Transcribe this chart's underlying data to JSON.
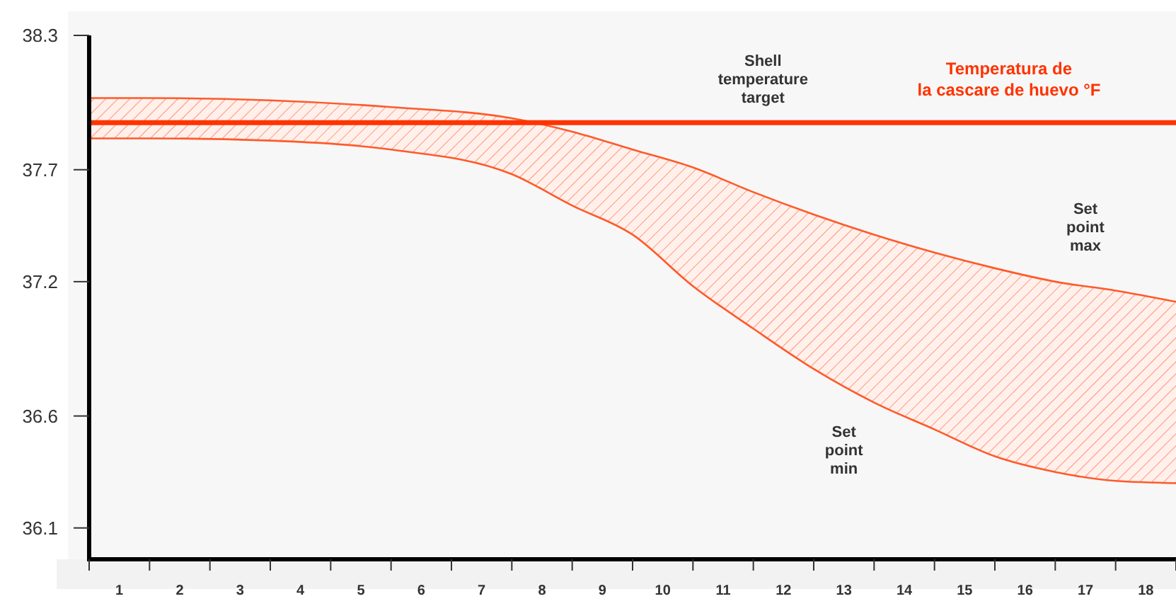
{
  "chart_data": {
    "type": "line",
    "xlim": [
      0.5,
      18.5
    ],
    "ylim": [
      35.96,
      38.3
    ],
    "xticks": [
      {
        "value": 0.5,
        "label": null
      },
      1,
      {
        "value": 1.5,
        "label": null
      },
      2,
      {
        "value": 2.5,
        "label": null
      },
      3,
      {
        "value": 3.5,
        "label": null
      },
      4,
      {
        "value": 4.5,
        "label": null
      },
      5,
      {
        "value": 5.5,
        "label": null
      },
      6,
      {
        "value": 6.5,
        "label": null
      },
      7,
      {
        "value": 7.5,
        "label": null
      },
      8,
      {
        "value": 8.5,
        "label": null
      },
      9,
      {
        "value": 9.5,
        "label": null
      },
      10,
      {
        "value": 10.5,
        "label": null
      },
      11,
      {
        "value": 11.5,
        "label": null
      },
      12,
      {
        "value": 12.5,
        "label": null
      },
      13,
      {
        "value": 13.5,
        "label": null
      },
      14,
      {
        "value": 14.5,
        "label": null
      },
      15,
      {
        "value": 15.5,
        "label": null
      },
      16,
      {
        "value": 16.5,
        "label": null
      },
      17,
      {
        "value": 17.5,
        "label": null
      },
      18,
      {
        "value": 18.5,
        "label": null
      }
    ],
    "yticks": [
      38.3,
      37.7,
      37.2,
      36.6,
      36.1
    ],
    "x": [
      0.5,
      1.5,
      3.5,
      5.5,
      7.5,
      8.5,
      9.5,
      10.5,
      11.5,
      12.5,
      13.5,
      14.5,
      15.5,
      16.5,
      17.5,
      18.5
    ],
    "series": [
      {
        "name": "Set point max",
        "color": "#ff5a2a",
        "values": [
          38.02,
          38.02,
          38.01,
          37.98,
          37.93,
          37.87,
          37.79,
          37.71,
          37.6,
          37.5,
          37.41,
          37.33,
          37.26,
          37.2,
          37.16,
          37.11
        ],
        "upper": [
          38.02,
          38.02,
          38.01,
          37.98,
          37.93,
          37.87,
          37.79,
          37.71,
          37.6,
          37.5,
          37.41,
          37.33,
          37.26,
          37.2,
          37.16,
          37.11
        ],
        "lower": [
          37.84,
          37.84,
          37.83,
          37.79,
          37.68,
          37.54,
          37.41,
          37.18,
          36.99,
          36.81,
          36.66,
          36.54,
          36.42,
          36.35,
          36.31,
          36.3
        ]
      },
      {
        "name": "Set point min",
        "color": "#ff5a2a",
        "values": [
          37.84,
          37.84,
          37.83,
          37.79,
          37.68,
          37.54,
          37.41,
          37.18,
          36.99,
          36.81,
          36.66,
          36.54,
          36.42,
          36.35,
          36.31,
          36.3
        ]
      }
    ],
    "ref_lines": [
      {
        "axis": "y",
        "value": 37.91,
        "label": "Temperatura de\nla cascare de huevo °F",
        "color": "#ff3300"
      }
    ],
    "annotations": [
      "Shell temperature target"
    ],
    "grid": false,
    "marker": "none",
    "line_style": "solid"
  }
}
